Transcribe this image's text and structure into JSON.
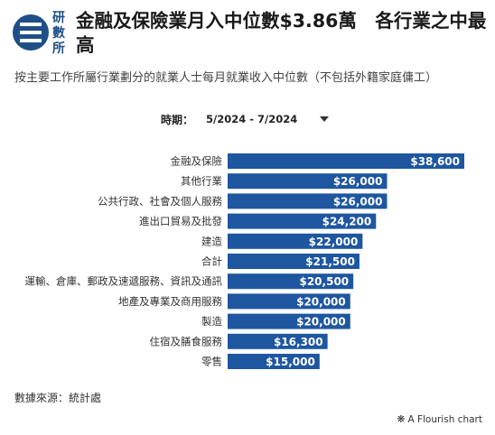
{
  "header": {
    "logo_text": "研數所",
    "title": "金融及保險業月入中位數$3.86萬　各行業之中最高"
  },
  "subtitle": "按主要工作所屬行業劃分的就業人士每月就業收入中位數（不包括外籍家庭傭工）",
  "filter": {
    "label": "時期：",
    "value": "5/2024 - 7/2024"
  },
  "colors": {
    "bar": "#1e56a0",
    "label_text": "#ffffff",
    "brand": "#1e4f86"
  },
  "chart_data": {
    "type": "bar",
    "orientation": "horizontal",
    "title": "",
    "xlabel": "",
    "ylabel": "",
    "grid": false,
    "categories": [
      "金融及保險",
      "其他行業",
      "公共行政、社會及個人服務",
      "進出口貿易及批發",
      "建造",
      "合計",
      "運輸、倉庫、郵政及速遞服務、資訊及通訊",
      "地產及專業及商用服務",
      "製造",
      "住宿及膳食服務",
      "零售"
    ],
    "values": [
      38600,
      26000,
      26000,
      24200,
      22000,
      21500,
      20500,
      20000,
      20000,
      16300,
      15000
    ],
    "value_labels": [
      "$38,600",
      "$26,000",
      "$26,000",
      "$24,200",
      "$22,000",
      "$21,500",
      "$20,500",
      "$20,000",
      "$20,000",
      "$16,300",
      "$15,000"
    ],
    "xlim": [
      0,
      38600
    ]
  },
  "footer": {
    "source": "數據來源：統計處",
    "credit": "A Flourish chart",
    "credit_icon": "flourish-icon"
  }
}
